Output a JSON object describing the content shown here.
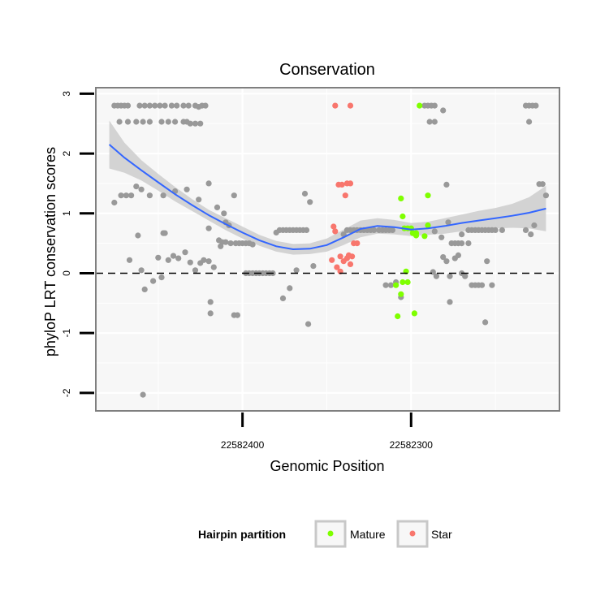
{
  "chart_data": {
    "type": "scatter",
    "title": "Conservation",
    "xlabel": "Genomic Position",
    "ylabel": "phyloP LRT conservation scores",
    "xlim": [
      22582487,
      22582212
    ],
    "ylim": [
      -2.3,
      3.1
    ],
    "x_reversed": true,
    "grid": true,
    "xticks": [
      {
        "value": 22582400,
        "label": "22582400"
      },
      {
        "value": 22582300,
        "label": "22582300"
      }
    ],
    "yticks": [
      {
        "value": 3,
        "label": "3"
      },
      {
        "value": 2,
        "label": "2"
      },
      {
        "value": 1,
        "label": "1"
      },
      {
        "value": 0,
        "label": "0"
      },
      {
        "value": -1,
        "label": "-1"
      },
      {
        "value": -2,
        "label": "-2"
      }
    ],
    "reference_line": {
      "y": 0,
      "style": "dashed"
    },
    "legend": {
      "title": "Hairpin partition",
      "position": "bottom",
      "entries": [
        {
          "label": "Mature",
          "color": "#7FFF00"
        },
        {
          "label": "Star",
          "color": "#F8766D"
        }
      ]
    },
    "colors": {
      "background": "#F7F7F7",
      "other": "#999999",
      "mature": "#7FFF00",
      "star": "#F8766D",
      "smooth": "#3366FF",
      "ribbon": "#CCCCCC"
    },
    "series": [
      {
        "name": "Other",
        "points": [
          [
            22582476,
            2.8
          ],
          [
            22582474,
            2.8
          ],
          [
            22582472,
            2.8
          ],
          [
            22582470,
            2.8
          ],
          [
            22582468,
            2.8
          ],
          [
            22582473,
            2.53
          ],
          [
            22582468,
            2.53
          ],
          [
            22582463,
            2.53
          ],
          [
            22582459,
            2.53
          ],
          [
            22582455,
            2.53
          ],
          [
            22582461,
            2.8
          ],
          [
            22582458,
            2.8
          ],
          [
            22582455,
            2.8
          ],
          [
            22582452,
            2.8
          ],
          [
            22582449,
            2.8
          ],
          [
            22582446,
            2.8
          ],
          [
            22582442,
            2.8
          ],
          [
            22582439,
            2.8
          ],
          [
            22582435,
            2.8
          ],
          [
            22582432,
            2.8
          ],
          [
            22582448,
            2.53
          ],
          [
            22582444,
            2.53
          ],
          [
            22582440,
            2.53
          ],
          [
            22582435,
            2.53
          ],
          [
            22582431,
            2.5
          ],
          [
            22582428,
            2.5
          ],
          [
            22582425,
            2.5
          ],
          [
            22582428,
            2.8
          ],
          [
            22582426,
            2.78
          ],
          [
            22582424,
            2.8
          ],
          [
            22582422,
            2.8
          ],
          [
            22582433,
            2.53
          ],
          [
            22582476,
            1.18
          ],
          [
            22582472,
            1.3
          ],
          [
            22582469,
            1.3
          ],
          [
            22582466,
            1.3
          ],
          [
            22582463,
            1.45
          ],
          [
            22582460,
            1.4
          ],
          [
            22582455,
            1.3
          ],
          [
            22582447,
            1.3
          ],
          [
            22582440,
            1.37
          ],
          [
            22582433,
            1.4
          ],
          [
            22582426,
            1.23
          ],
          [
            22582420,
            1.5
          ],
          [
            22582415,
            1.1
          ],
          [
            22582411,
            1.0
          ],
          [
            22582405,
            1.3
          ],
          [
            22582410,
            0.85
          ],
          [
            22582408,
            0.8
          ],
          [
            22582467,
            0.22
          ],
          [
            22582462,
            0.63
          ],
          [
            22582460,
            0.05
          ],
          [
            22582458,
            -0.27
          ],
          [
            22582453,
            -0.13
          ],
          [
            22582450,
            0.26
          ],
          [
            22582448,
            -0.07
          ],
          [
            22582447,
            0.67
          ],
          [
            22582446,
            0.67
          ],
          [
            22582444,
            0.22
          ],
          [
            22582441,
            0.29
          ],
          [
            22582438,
            0.25
          ],
          [
            22582434,
            0.35
          ],
          [
            22582431,
            0.18
          ],
          [
            22582428,
            0.05
          ],
          [
            22582425,
            0.17
          ],
          [
            22582423,
            0.22
          ],
          [
            22582420,
            0.2
          ],
          [
            22582417,
            0.1
          ],
          [
            22582414,
            0.55
          ],
          [
            22582412,
            0.52
          ],
          [
            22582420,
            0.75
          ],
          [
            22582419,
            -0.48
          ],
          [
            22582419,
            -0.67
          ],
          [
            22582413,
            0.45
          ],
          [
            22582410,
            0.52
          ],
          [
            22582407,
            0.5
          ],
          [
            22582404,
            0.5
          ],
          [
            22582402,
            0.5
          ],
          [
            22582400,
            0.5
          ],
          [
            22582398,
            0.5
          ],
          [
            22582396,
            0.5
          ],
          [
            22582394,
            0.48
          ],
          [
            22582405,
            -0.7
          ],
          [
            22582403,
            -0.7
          ],
          [
            22582398,
            0.0
          ],
          [
            22582396,
            0.0
          ],
          [
            22582394,
            0.0
          ],
          [
            22582392,
            0.0
          ],
          [
            22582390,
            0.0
          ],
          [
            22582388,
            0.0
          ],
          [
            22582386,
            0.0
          ],
          [
            22582384,
            0.0
          ],
          [
            22582382,
            0.0
          ],
          [
            22582380,
            0.68
          ],
          [
            22582378,
            0.72
          ],
          [
            22582376,
            0.72
          ],
          [
            22582374,
            0.72
          ],
          [
            22582372,
            0.72
          ],
          [
            22582370,
            0.72
          ],
          [
            22582368,
            0.72
          ],
          [
            22582366,
            0.72
          ],
          [
            22582364,
            0.72
          ],
          [
            22582362,
            0.72
          ],
          [
            22582376,
            -0.42
          ],
          [
            22582372,
            -0.25
          ],
          [
            22582368,
            0.05
          ],
          [
            22582363,
            1.33
          ],
          [
            22582360,
            1.19
          ],
          [
            22582361,
            -0.85
          ],
          [
            22582358,
            0.12
          ],
          [
            22582340,
            0.65
          ],
          [
            22582338,
            0.72
          ],
          [
            22582336,
            0.72
          ],
          [
            22582334,
            0.72
          ],
          [
            22582332,
            0.72
          ],
          [
            22582330,
            0.72
          ],
          [
            22582328,
            0.72
          ],
          [
            22582326,
            0.72
          ],
          [
            22582324,
            0.72
          ],
          [
            22582322,
            0.72
          ],
          [
            22582319,
            0.72
          ],
          [
            22582317,
            0.72
          ],
          [
            22582315,
            0.72
          ],
          [
            22582313,
            0.72
          ],
          [
            22582311,
            0.72
          ],
          [
            22582315,
            -0.2
          ],
          [
            22582312,
            -0.2
          ],
          [
            22582309,
            -0.15
          ],
          [
            22582306,
            -0.4
          ],
          [
            22582292,
            2.8
          ],
          [
            22582290,
            2.8
          ],
          [
            22582288,
            2.8
          ],
          [
            22582286,
            2.8
          ],
          [
            22582289,
            2.53
          ],
          [
            22582286,
            2.53
          ],
          [
            22582281,
            2.72
          ],
          [
            22582282,
            0.6
          ],
          [
            22582286,
            0.7
          ],
          [
            22582287,
            0.02
          ],
          [
            22582285,
            -0.05
          ],
          [
            22582279,
            1.48
          ],
          [
            22582278,
            0.85
          ],
          [
            22582276,
            0.5
          ],
          [
            22582274,
            0.5
          ],
          [
            22582272,
            0.5
          ],
          [
            22582270,
            0.5
          ],
          [
            22582274,
            0.25
          ],
          [
            22582277,
            -0.05
          ],
          [
            22582279,
            0.2
          ],
          [
            22582281,
            0.27
          ],
          [
            22582277,
            -0.48
          ],
          [
            22582270,
            0.65
          ],
          [
            22582266,
            0.72
          ],
          [
            22582264,
            0.72
          ],
          [
            22582262,
            0.72
          ],
          [
            22582260,
            0.72
          ],
          [
            22582258,
            0.72
          ],
          [
            22582256,
            0.72
          ],
          [
            22582254,
            0.72
          ],
          [
            22582252,
            0.72
          ],
          [
            22582250,
            0.72
          ],
          [
            22582272,
            0.3
          ],
          [
            22582270,
            0.0
          ],
          [
            22582268,
            -0.05
          ],
          [
            22582266,
            0.5
          ],
          [
            22582264,
            -0.2
          ],
          [
            22582262,
            -0.2
          ],
          [
            22582260,
            -0.2
          ],
          [
            22582258,
            -0.2
          ],
          [
            22582255,
            0.2
          ],
          [
            22582252,
            -0.2
          ],
          [
            22582246,
            0.72
          ],
          [
            22582256,
            -0.82
          ],
          [
            22582232,
            2.8
          ],
          [
            22582230,
            2.8
          ],
          [
            22582228,
            2.8
          ],
          [
            22582226,
            2.8
          ],
          [
            22582230,
            2.53
          ],
          [
            22582229,
            0.65
          ],
          [
            22582227,
            0.8
          ],
          [
            22582232,
            0.72
          ],
          [
            22582224,
            1.49
          ],
          [
            22582222,
            1.49
          ],
          [
            22582220,
            1.3
          ],
          [
            22582459,
            -2.03
          ]
        ]
      },
      {
        "name": "Mature",
        "points": [
          [
            22582295,
            2.8
          ],
          [
            22582297,
            0.67
          ],
          [
            22582299,
            0.67
          ],
          [
            22582290,
            1.3
          ],
          [
            22582290,
            0.8
          ],
          [
            22582292,
            0.62
          ],
          [
            22582306,
            1.25
          ],
          [
            22582305,
            0.95
          ],
          [
            22582304,
            0.75
          ],
          [
            22582302,
            0.75
          ],
          [
            22582300,
            0.75
          ],
          [
            22582297,
            0.63
          ],
          [
            22582303,
            0.03
          ],
          [
            22582302,
            -0.15
          ],
          [
            22582305,
            -0.15
          ],
          [
            22582306,
            -0.35
          ],
          [
            22582309,
            -0.2
          ],
          [
            22582308,
            -0.72
          ],
          [
            22582298,
            -0.67
          ]
        ]
      },
      {
        "name": "Star",
        "points": [
          [
            22582345,
            2.8
          ],
          [
            22582336,
            2.8
          ],
          [
            22582343,
            1.48
          ],
          [
            22582341,
            1.48
          ],
          [
            22582338,
            1.5
          ],
          [
            22582336,
            1.5
          ],
          [
            22582339,
            1.3
          ],
          [
            22582346,
            0.78
          ],
          [
            22582345,
            0.7
          ],
          [
            22582347,
            0.22
          ],
          [
            22582342,
            0.28
          ],
          [
            22582340,
            0.2
          ],
          [
            22582338,
            0.25
          ],
          [
            22582335,
            0.28
          ],
          [
            22582334,
            0.5
          ],
          [
            22582332,
            0.5
          ],
          [
            22582336,
            0.15
          ],
          [
            22582342,
            0.03
          ],
          [
            22582344,
            0.1
          ],
          [
            22582337,
            0.3
          ]
        ]
      }
    ],
    "smooth": {
      "label": "loess fit",
      "x": [
        22582479,
        22582470,
        22582460,
        22582450,
        22582440,
        22582430,
        22582420,
        22582410,
        22582400,
        22582390,
        22582380,
        22582370,
        22582360,
        22582350,
        22582340,
        22582330,
        22582320,
        22582310,
        22582300,
        22582290,
        22582280,
        22582270,
        22582260,
        22582250,
        22582240,
        22582230,
        22582220
      ],
      "y": [
        2.15,
        1.93,
        1.72,
        1.52,
        1.32,
        1.14,
        0.97,
        0.82,
        0.68,
        0.55,
        0.45,
        0.4,
        0.41,
        0.47,
        0.6,
        0.74,
        0.79,
        0.77,
        0.73,
        0.75,
        0.79,
        0.84,
        0.88,
        0.92,
        0.96,
        1.01,
        1.08
      ],
      "lower": [
        1.75,
        1.68,
        1.55,
        1.38,
        1.2,
        1.04,
        0.88,
        0.72,
        0.58,
        0.46,
        0.36,
        0.31,
        0.32,
        0.36,
        0.47,
        0.6,
        0.66,
        0.65,
        0.62,
        0.64,
        0.66,
        0.7,
        0.72,
        0.75,
        0.76,
        0.75,
        0.7
      ],
      "upper": [
        2.55,
        2.18,
        1.89,
        1.66,
        1.44,
        1.24,
        1.06,
        0.92,
        0.78,
        0.64,
        0.54,
        0.49,
        0.5,
        0.58,
        0.73,
        0.88,
        0.92,
        0.89,
        0.84,
        0.86,
        0.92,
        0.98,
        1.04,
        1.09,
        1.16,
        1.27,
        1.46
      ]
    }
  }
}
